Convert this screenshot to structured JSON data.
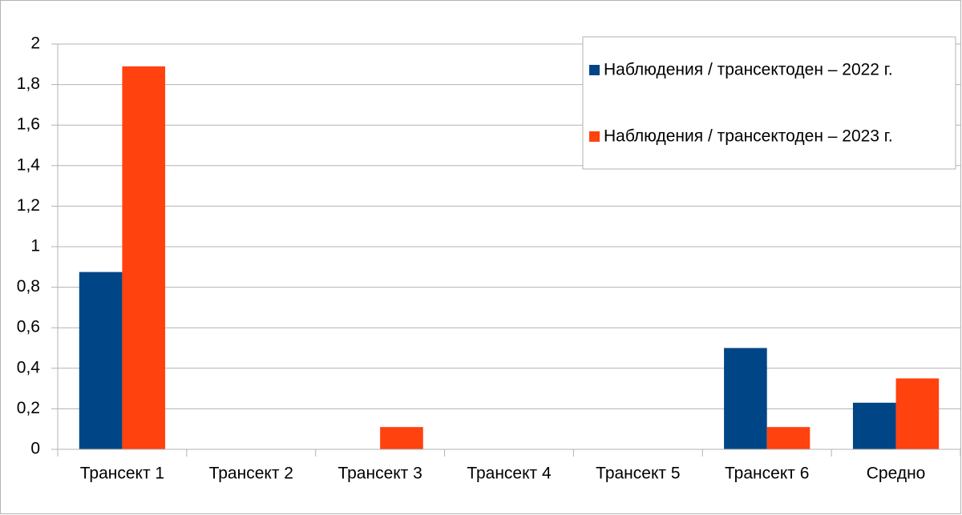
{
  "chart_data": {
    "type": "bar",
    "categories": [
      "Трансект 1",
      "Трансект 2",
      "Трансект 3",
      "Трансект 4",
      "Трансект 5",
      "Трансект 6",
      "Средно"
    ],
    "series": [
      {
        "name": "Наблюдения / трансектоден – 2022 г.",
        "color": "#004586",
        "values": [
          0.875,
          0,
          0,
          0,
          0,
          0.5,
          0.23
        ]
      },
      {
        "name": "Наблюдения / трансектоден – 2023 г.",
        "color": "#ff420e",
        "values": [
          1.89,
          0,
          0.11,
          0,
          0,
          0.11,
          0.35
        ]
      }
    ],
    "ylim": [
      0,
      2
    ],
    "yticks": [
      0,
      {
        "value": 0.2,
        "label": "0,2"
      },
      {
        "value": 0.4,
        "label": "0,4"
      },
      {
        "value": 0.6,
        "label": "0,6"
      },
      {
        "value": 0.8,
        "label": "0,8"
      },
      1,
      {
        "value": 1.2,
        "label": "1,2"
      },
      {
        "value": 1.4,
        "label": "1,4"
      },
      {
        "value": 1.6,
        "label": "1,6"
      },
      {
        "value": 1.8,
        "label": "1,8"
      },
      2
    ],
    "grid": true,
    "legend": "top-right"
  }
}
